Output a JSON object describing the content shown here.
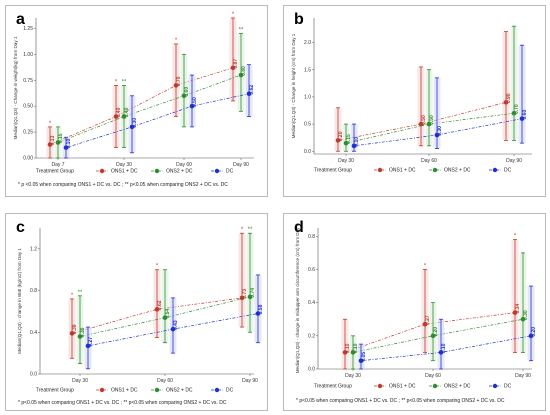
{
  "colors": {
    "onsi1": "#c0392b",
    "onsi2": "#2e8b2e",
    "dc": "#1f2fd0",
    "band1": "#f5d6d6",
    "band2": "#d9efd9",
    "band3": "#d6d9f7"
  },
  "legend": {
    "title": "Treatment Group",
    "items": [
      "ONS1 + DC",
      "ONS2 + DC",
      "DC"
    ]
  },
  "chart_data": [
    {
      "panel": "a",
      "type": "line",
      "ylabel": "Median(Q1,Q3) - Change in weight(kg) from Day 1",
      "categories": [
        "Day 7",
        "Day 30",
        "Day 60",
        "Day 90"
      ],
      "ylim": [
        0,
        1.35
      ],
      "yticks": [
        "0.00",
        "0.25",
        "0.50",
        "0.75",
        "1.00",
        "1.25"
      ],
      "series": [
        {
          "name": "ONS1 + DC",
          "values": [
            0.13,
            0.4,
            0.7,
            0.87
          ],
          "q1": [
            0.0,
            0.1,
            0.4,
            0.55
          ],
          "q3": [
            0.3,
            0.7,
            1.1,
            1.35
          ],
          "labels": [
            "0.13",
            "0.40",
            "0.70",
            "0.87"
          ]
        },
        {
          "name": "ONS2 + DC",
          "values": [
            0.15,
            0.4,
            0.6,
            0.8
          ],
          "q1": [
            0.0,
            0.1,
            0.3,
            0.45
          ],
          "q3": [
            0.3,
            0.7,
            1.0,
            1.2
          ],
          "labels": [
            "0.15",
            "0.40",
            "0.60",
            "0.80"
          ]
        },
        {
          "name": "DC",
          "values": [
            0.1,
            0.3,
            0.5,
            0.62
          ],
          "q1": [
            0.0,
            0.05,
            0.3,
            0.4
          ],
          "q3": [
            0.2,
            0.6,
            0.8,
            0.9
          ],
          "labels": [
            "0.10",
            "0.30",
            "0.50",
            "0.62"
          ]
        }
      ],
      "stars_red": [
        "*",
        "*",
        "*",
        "*"
      ],
      "stars_green": [
        "",
        "**",
        "",
        "**"
      ],
      "note": "* p <0.05 when comparing ONS1 + DC vs. DC ; ** p<0.05 when comparing ONS2 + DC vs. DC"
    },
    {
      "panel": "b",
      "type": "line",
      "ylabel": "Median(Q1,Q3) - Change in height (cm) from Day 1",
      "categories": [
        "Day 30",
        "Day 60",
        "Day 90"
      ],
      "ylim": [
        -0.05,
        2.45
      ],
      "yticks": [
        "0.0",
        "0.5",
        "1.0",
        "1.5",
        "2.0"
      ],
      "series": [
        {
          "name": "ONS1 + DC",
          "values": [
            0.2,
            0.5,
            0.9
          ],
          "q1": [
            0.0,
            0.1,
            0.2
          ],
          "q3": [
            0.8,
            1.55,
            2.2
          ],
          "labels": [
            "0.20",
            "0.50",
            "0.90"
          ]
        },
        {
          "name": "ONS2 + DC",
          "values": [
            0.15,
            0.5,
            0.7
          ],
          "q1": [
            0.0,
            0.1,
            0.2
          ],
          "q3": [
            0.5,
            1.5,
            2.3
          ],
          "labels": [
            "0.15",
            "0.50",
            "0.70"
          ]
        },
        {
          "name": "DC",
          "values": [
            0.1,
            0.3,
            0.6
          ],
          "q1": [
            0.0,
            0.05,
            0.15
          ],
          "q3": [
            0.5,
            1.35,
            1.95
          ],
          "labels": [
            "0.10",
            "0.30",
            "0.60"
          ]
        }
      ],
      "stars_red": [
        "",
        "",
        ""
      ],
      "stars_green": [
        "",
        "",
        ""
      ],
      "note": ""
    },
    {
      "panel": "c",
      "type": "line",
      "ylabel": "Median(Q1,Q3) - change in BMI (kg/m2) from Day 1",
      "categories": [
        "Day 30",
        "Day 60",
        "Day 90"
      ],
      "ylim": [
        0,
        1.4
      ],
      "yticks": [
        "0.0",
        "0.4",
        "0.8",
        "1.2"
      ],
      "series": [
        {
          "name": "ONS1 + DC",
          "values": [
            0.39,
            0.62,
            0.73
          ],
          "q1": [
            0.15,
            0.35,
            0.45
          ],
          "q3": [
            0.72,
            1.0,
            1.35
          ],
          "labels": [
            "0.39",
            "0.62",
            "0.73"
          ]
        },
        {
          "name": "ONS2 + DC",
          "values": [
            0.36,
            0.54,
            0.74
          ],
          "q1": [
            0.1,
            0.3,
            0.4
          ],
          "q3": [
            0.75,
            1.0,
            1.35
          ],
          "labels": [
            "0.36",
            "0.54",
            "0.74"
          ]
        },
        {
          "name": "DC",
          "values": [
            0.27,
            0.43,
            0.58
          ],
          "q1": [
            0.05,
            0.2,
            0.3
          ],
          "q3": [
            0.45,
            0.73,
            0.95
          ],
          "labels": [
            "0.27",
            "0.43",
            "0.58"
          ]
        }
      ],
      "stars_red": [
        "*",
        "*",
        "*"
      ],
      "stars_green": [
        "**",
        "",
        "**"
      ],
      "note": "* p<0.05 when comparing ONS1 + DC vs. DC ; ** p<0.05 when comparing ONS2 + DC vs. DC"
    },
    {
      "panel": "d",
      "type": "line",
      "ylabel": "Median(Q1,Q3) - change in midupper arm circumference (cm) from Day 1",
      "categories": [
        "Day 30",
        "Day 60",
        "Day 90"
      ],
      "ylim": [
        0,
        0.85
      ],
      "yticks": [
        "0.0",
        "0.2",
        "0.4",
        "0.6",
        "0.8"
      ],
      "series": [
        {
          "name": "ONS1 + DC",
          "values": [
            0.1,
            0.27,
            0.34
          ],
          "q1": [
            0.0,
            0.1,
            0.1
          ],
          "q3": [
            0.3,
            0.6,
            0.78
          ],
          "labels": [
            "0.10",
            "0.27",
            "0.34"
          ]
        },
        {
          "name": "ONS2 + DC",
          "values": [
            0.1,
            0.2,
            0.3
          ],
          "q1": [
            0.0,
            0.05,
            0.1
          ],
          "q3": [
            0.2,
            0.4,
            0.7
          ],
          "labels": [
            "0.10",
            "0.20",
            "0.30"
          ]
        },
        {
          "name": "DC",
          "values": [
            0.05,
            0.1,
            0.2
          ],
          "q1": [
            0.0,
            0.0,
            0.05
          ],
          "q3": [
            0.15,
            0.3,
            0.5
          ],
          "labels": [
            "0.05",
            "0.10",
            "0.20"
          ]
        }
      ],
      "stars_red": [
        "",
        "*",
        "*"
      ],
      "stars_green": [
        "",
        "",
        ""
      ],
      "note": "* p<0.05 when comparing ONS1 + DC vs. DC ; ** p<0.05 when comparing ONS2 + DC vs. DC"
    }
  ]
}
